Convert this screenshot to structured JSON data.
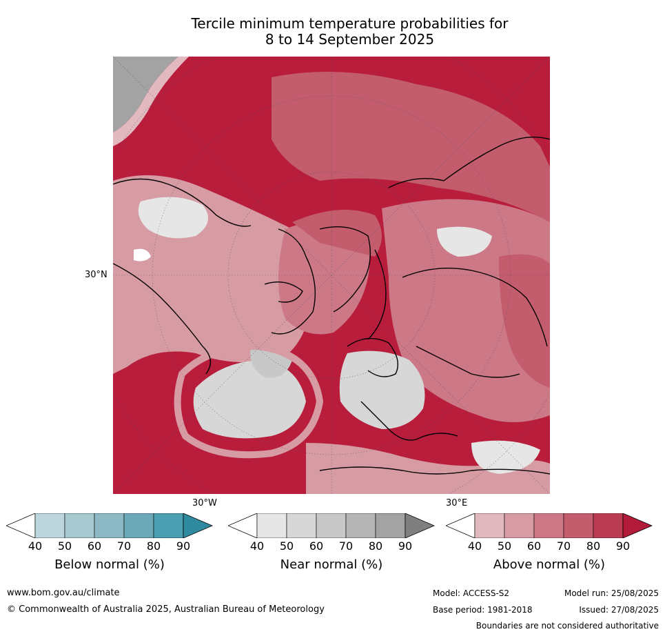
{
  "title": {
    "line1": "Tercile minimum temperature probabilities for",
    "line2": "8 to 14 September 2025"
  },
  "map": {
    "grid_labels": {
      "lat": "30°N",
      "lon_left": "30°W",
      "lon_right": "30°E"
    },
    "colors": {
      "ocean_red": "#b81d3c",
      "land_outline": "#000000",
      "boundary": "#888888"
    }
  },
  "legends": [
    {
      "title": "Below normal (%)",
      "ticks": [
        "40",
        "50",
        "60",
        "70",
        "80",
        "90"
      ],
      "colors": [
        "#ffffff",
        "#bdd6dd",
        "#a6c9d0",
        "#8db9c4",
        "#6ba9b8",
        "#4a9fb0",
        "#2f8aa0"
      ]
    },
    {
      "title": "Near normal (%)",
      "ticks": [
        "40",
        "50",
        "60",
        "70",
        "80",
        "90"
      ],
      "colors": [
        "#ffffff",
        "#e6e6e6",
        "#d7d7d7",
        "#c8c8c8",
        "#b5b5b5",
        "#a3a3a3",
        "#7f7f7f"
      ]
    },
    {
      "title": "Above normal (%)",
      "ticks": [
        "40",
        "50",
        "60",
        "70",
        "80",
        "90"
      ],
      "colors": [
        "#ffffff",
        "#e1b9bf",
        "#d69ba3",
        "#cc7886",
        "#c35c6c",
        "#bb3b52",
        "#b31b3a"
      ]
    }
  ],
  "footer": {
    "website": "www.bom.gov.au/climate",
    "copyright": "© Commonwealth of Australia 2025, Australian Bureau of Meteorology",
    "model": "Model: ACCESS-S2",
    "model_run": "Model run: 25/08/2025",
    "base_period": "Base period: 1981-2018",
    "issued": "Issued: 27/08/2025",
    "disclaimer": "Boundaries are not considered authoritative"
  }
}
